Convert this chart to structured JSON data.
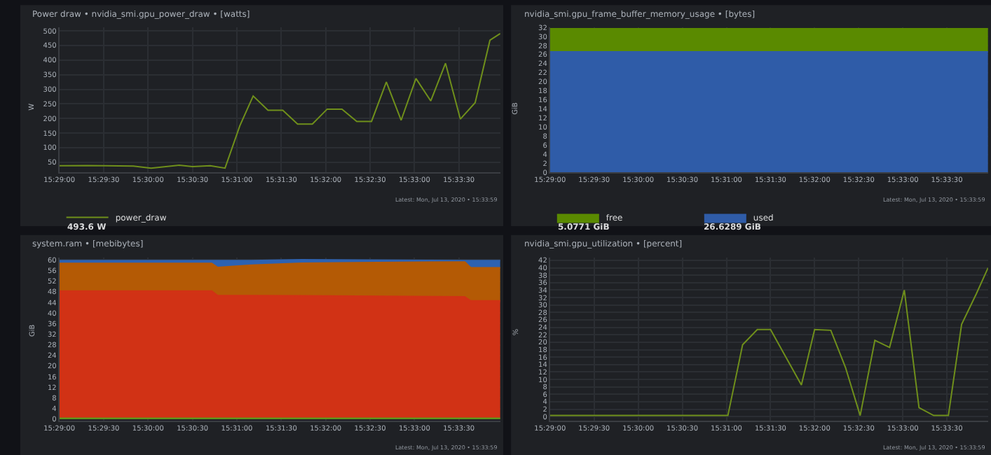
{
  "chart_data": [
    {
      "type": "line",
      "title": "Power draw • nvidia_smi.gpu_power_draw • [watts]",
      "ylabel": "W",
      "grid": true,
      "legend": "bottom left",
      "marker": "none",
      "x": [
        15.48333,
        15.48861,
        15.49194,
        15.49722,
        15.50056,
        15.50583,
        15.50833,
        15.51167,
        15.51444,
        15.51722,
        15.51972,
        15.5225,
        15.52528,
        15.52806,
        15.53083,
        15.53361,
        15.53639,
        15.53917,
        15.54194,
        15.54472,
        15.5475,
        15.55028,
        15.55306,
        15.55583,
        15.55861,
        15.56139,
        15.56417,
        15.56611
      ],
      "series": [
        {
          "name": "power_draw",
          "color": "#6f8f1b",
          "values": [
            38,
            39,
            38,
            37,
            30,
            40,
            35,
            38,
            30,
            175,
            277,
            228,
            228,
            181,
            181,
            232,
            232,
            190,
            190,
            325,
            194,
            337,
            260,
            389,
            198,
            254,
            468,
            491
          ]
        }
      ],
      "xlim": [
        15.48333,
        15.56611
      ],
      "ylim": [
        15,
        512
      ],
      "xticks": [
        {
          "value": 15.48333,
          "label": "15:29:00"
        },
        {
          "value": 15.49167,
          "label": "15:29:30"
        },
        {
          "value": 15.5,
          "label": "15:30:00"
        },
        {
          "value": 15.50833,
          "label": "15:30:30"
        },
        {
          "value": 15.51667,
          "label": "15:31:00"
        },
        {
          "value": 15.525,
          "label": "15:31:30"
        },
        {
          "value": 15.53333,
          "label": "15:32:00"
        },
        {
          "value": 15.54167,
          "label": "15:32:30"
        },
        {
          "value": 15.55,
          "label": "15:33:00"
        },
        {
          "value": 15.55833,
          "label": "15:33:30"
        }
      ],
      "yticks": [
        50,
        100,
        150,
        200,
        250,
        300,
        350,
        400,
        450,
        500
      ],
      "annotations": [
        "493.6 W",
        "Latest: Mon, Jul 13, 2020 • 15:33:59"
      ]
    },
    {
      "type": "area",
      "stacked": true,
      "title": "nvidia_smi.gpu_frame_buffer_memory_usage • [bytes]",
      "ylabel": "GiB",
      "grid": true,
      "legend": "bottom left",
      "x": [
        15.48333,
        15.56611
      ],
      "series": [
        {
          "name": "used",
          "color": "#2f5ca8",
          "values": [
            26.6289,
            26.6289
          ]
        },
        {
          "name": "free",
          "color": "#5a8a00",
          "values": [
            5.0771,
            5.0771
          ]
        }
      ],
      "xlim": [
        15.48333,
        15.56611
      ],
      "ylim": [
        0,
        32
      ],
      "xticks": [
        {
          "value": 15.48333,
          "label": "15:29:00"
        },
        {
          "value": 15.49167,
          "label": "15:29:30"
        },
        {
          "value": 15.5,
          "label": "15:30:00"
        },
        {
          "value": 15.50833,
          "label": "15:30:30"
        },
        {
          "value": 15.51667,
          "label": "15:31:00"
        },
        {
          "value": 15.525,
          "label": "15:31:30"
        },
        {
          "value": 15.53333,
          "label": "15:32:00"
        },
        {
          "value": 15.54167,
          "label": "15:32:30"
        },
        {
          "value": 15.55,
          "label": "15:33:00"
        },
        {
          "value": 15.55833,
          "label": "15:33:30"
        }
      ],
      "yticks": [
        0,
        2,
        4,
        6,
        8,
        10,
        12,
        14,
        16,
        18,
        20,
        22,
        24,
        26,
        28,
        30,
        32
      ],
      "annotations": [
        "5.0771 GiB",
        "26.6289 GiB",
        "Latest: Mon, Jul 13, 2020 • 15:33:59"
      ]
    },
    {
      "type": "area",
      "stacked": true,
      "title": "system.ram • [mebibytes]",
      "ylabel": "GiB",
      "grid": true,
      "x": [
        15.48333,
        15.51194,
        15.51306,
        15.51944,
        15.52889,
        15.55944,
        15.56056,
        15.56611
      ],
      "series": [
        {
          "color": "#5f9a1c",
          "values": [
            0.3,
            0.3,
            0.3,
            0.3,
            0.3,
            0.3,
            0.3,
            0.3
          ]
        },
        {
          "color": "#d13215",
          "values": [
            48.0,
            48.0,
            46.3,
            46.3,
            46.2,
            45.8,
            44.3,
            44.3
          ]
        },
        {
          "color": "#b45a05",
          "values": [
            10.4,
            10.4,
            10.6,
            11.5,
            12.3,
            13.2,
            12.5,
            12.5
          ]
        },
        {
          "color": "#2d62b2",
          "values": [
            1.1,
            1.1,
            2.6,
            1.7,
            1.3,
            0.5,
            2.7,
            2.7
          ]
        }
      ],
      "xlim": [
        15.48333,
        15.56611
      ],
      "ylim": [
        -0.5,
        61
      ],
      "xticks": [
        {
          "value": 15.48333,
          "label": "15:29:00"
        },
        {
          "value": 15.49167,
          "label": "15:29:30"
        },
        {
          "value": 15.5,
          "label": "15:30:00"
        },
        {
          "value": 15.50833,
          "label": "15:30:30"
        },
        {
          "value": 15.51667,
          "label": "15:31:00"
        },
        {
          "value": 15.525,
          "label": "15:31:30"
        },
        {
          "value": 15.53333,
          "label": "15:32:00"
        },
        {
          "value": 15.54167,
          "label": "15:32:30"
        },
        {
          "value": 15.55,
          "label": "15:33:00"
        },
        {
          "value": 15.55833,
          "label": "15:33:30"
        }
      ],
      "yticks": [
        0,
        4,
        8,
        12,
        16,
        20,
        24,
        28,
        32,
        36,
        40,
        44,
        48,
        52,
        56,
        60
      ],
      "annotations": [
        "Latest: Mon, Jul 13, 2020 • 15:33:59"
      ]
    },
    {
      "type": "line",
      "title": "nvidia_smi.gpu_utilization • [percent]",
      "ylabel": "%",
      "grid": true,
      "marker": "none",
      "x": [
        15.48333,
        15.51694,
        15.51972,
        15.5225,
        15.525,
        15.53083,
        15.53333,
        15.53639,
        15.53917,
        15.54194,
        15.54472,
        15.5475,
        15.55028,
        15.55306,
        15.55583,
        15.55861,
        15.56111,
        15.56389,
        15.56611
      ],
      "series": [
        {
          "color": "#6f8f1b",
          "values": [
            0.3,
            0.3,
            19.3,
            23.4,
            23.4,
            8.5,
            23.4,
            23.2,
            13.2,
            0.3,
            20.5,
            18.6,
            34,
            2.4,
            0.3,
            0.3,
            24.8,
            33,
            40
          ]
        }
      ],
      "xlim": [
        15.48333,
        15.56611
      ],
      "ylim": [
        -1,
        42.8
      ],
      "xticks": [
        {
          "value": 15.48333,
          "label": "15:29:00"
        },
        {
          "value": 15.49167,
          "label": "15:29:30"
        },
        {
          "value": 15.5,
          "label": "15:30:00"
        },
        {
          "value": 15.50833,
          "label": "15:30:30"
        },
        {
          "value": 15.51667,
          "label": "15:31:00"
        },
        {
          "value": 15.525,
          "label": "15:31:30"
        },
        {
          "value": 15.53333,
          "label": "15:32:00"
        },
        {
          "value": 15.54167,
          "label": "15:32:30"
        },
        {
          "value": 15.55,
          "label": "15:33:00"
        },
        {
          "value": 15.55833,
          "label": "15:33:30"
        }
      ],
      "yticks": [
        0,
        2,
        4,
        6,
        8,
        10,
        12,
        14,
        16,
        18,
        20,
        22,
        24,
        26,
        28,
        30,
        32,
        34,
        36,
        38,
        40,
        42
      ],
      "annotations": [
        "Latest: Mon, Jul 13, 2020 • 15:33:59"
      ]
    }
  ]
}
